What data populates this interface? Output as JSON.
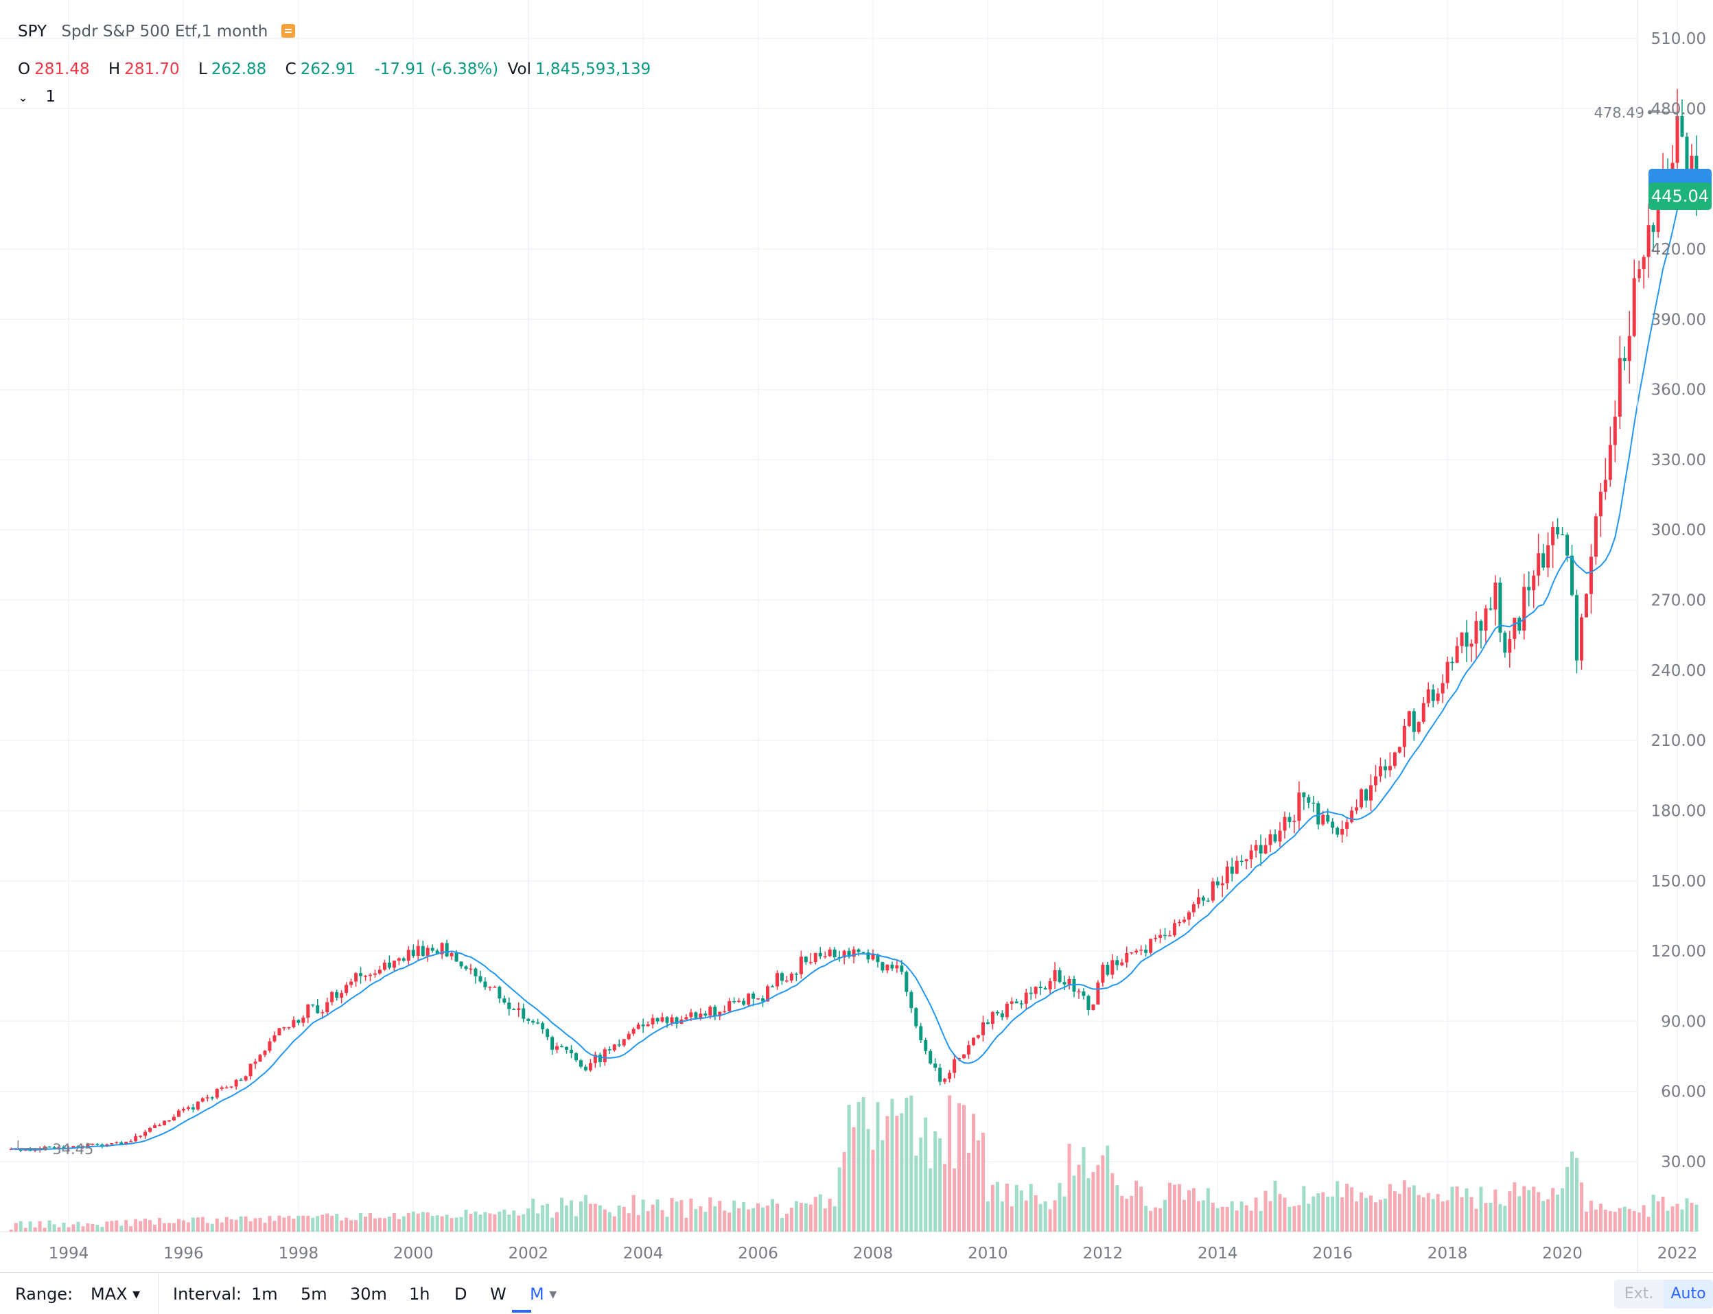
{
  "header": {
    "symbol": "SPY",
    "description": "Spdr S&P 500 Etf,1 month",
    "badge_icon": "flag-icon"
  },
  "ohlc": {
    "o_label": "O",
    "o_value": "281.48",
    "h_label": "H",
    "h_value": "281.70",
    "l_label": "L",
    "l_value": "262.88",
    "c_label": "C",
    "c_value": "262.91",
    "change": "-17.91 (-6.38%)",
    "vol_label": "Vol",
    "vol_value": "1,845,593,139"
  },
  "indicator_toggle": {
    "icon": "chevron-down-icon",
    "label": "1"
  },
  "price_scale": {
    "labels": [
      "510.00",
      "480.00",
      "420.00",
      "390.00",
      "360.00",
      "330.00",
      "300.00",
      "270.00",
      "240.00",
      "210.00",
      "180.00",
      "150.00",
      "120.00",
      "90.00",
      "60.00",
      "30.00"
    ],
    "current_price": "445.04"
  },
  "time_scale": {
    "labels": [
      "1994",
      "1996",
      "1998",
      "2000",
      "2002",
      "2004",
      "2006",
      "2008",
      "2010",
      "2012",
      "2014",
      "2016",
      "2018",
      "2020",
      "2022"
    ]
  },
  "markers": {
    "high_label": "478.49",
    "low_label": "34.45"
  },
  "toolbar": {
    "range_label": "Range:",
    "range_value": "MAX",
    "interval_label": "Interval:",
    "intervals": [
      "1m",
      "5m",
      "30m",
      "1h",
      "D",
      "W",
      "M"
    ],
    "active_interval": "M",
    "ext_label": "Ext.",
    "auto_label": "Auto"
  },
  "colors": {
    "up": "#f23645",
    "down": "#089981",
    "ma": "#2196f3",
    "grid": "#f0f3fa",
    "accent": "#2962ff"
  },
  "chart_data": {
    "type": "candlestick",
    "title": "SPY Spdr S&P 500 Etf, 1 month",
    "ylim": [
      0,
      525
    ],
    "xlim": [
      1993.0,
      2022.35
    ],
    "legend": "top-left",
    "grid": true,
    "anchors": [
      {
        "t": 1993.0,
        "p": 35
      },
      {
        "t": 1995.0,
        "p": 38
      },
      {
        "t": 1996.0,
        "p": 52
      },
      {
        "t": 1997.0,
        "p": 65
      },
      {
        "t": 1997.6,
        "p": 85
      },
      {
        "t": 1998.6,
        "p": 100
      },
      {
        "t": 1999.0,
        "p": 110
      },
      {
        "t": 2000.5,
        "p": 122
      },
      {
        "t": 2001.0,
        "p": 110
      },
      {
        "t": 2001.8,
        "p": 95
      },
      {
        "t": 2002.5,
        "p": 78
      },
      {
        "t": 2003.0,
        "p": 70
      },
      {
        "t": 2004.0,
        "p": 90
      },
      {
        "t": 2005.0,
        "p": 92
      },
      {
        "t": 2006.0,
        "p": 100
      },
      {
        "t": 2007.0,
        "p": 120
      },
      {
        "t": 2007.8,
        "p": 120
      },
      {
        "t": 2008.5,
        "p": 110
      },
      {
        "t": 2009.0,
        "p": 70
      },
      {
        "t": 2009.2,
        "p": 65
      },
      {
        "t": 2010.0,
        "p": 90
      },
      {
        "t": 2011.3,
        "p": 110
      },
      {
        "t": 2011.8,
        "p": 95
      },
      {
        "t": 2012.0,
        "p": 112
      },
      {
        "t": 2013.0,
        "p": 125
      },
      {
        "t": 2014.0,
        "p": 150
      },
      {
        "t": 2015.0,
        "p": 170
      },
      {
        "t": 2015.5,
        "p": 185
      },
      {
        "t": 2016.0,
        "p": 170
      },
      {
        "t": 2016.5,
        "p": 185
      },
      {
        "t": 2017.0,
        "p": 205
      },
      {
        "t": 2018.0,
        "p": 240
      },
      {
        "t": 2018.8,
        "p": 275
      },
      {
        "t": 2019.0,
        "p": 250
      },
      {
        "t": 2020.0,
        "p": 300
      },
      {
        "t": 2020.25,
        "p": 250
      },
      {
        "t": 2021.0,
        "p": 370
      },
      {
        "t": 2021.9,
        "p": 465
      },
      {
        "t": 2022.0,
        "p": 470
      },
      {
        "t": 2022.35,
        "p": 445
      }
    ],
    "high": {
      "t": 2022.0,
      "p": 478.49
    },
    "low": {
      "t": 1993.0,
      "p": 34.45
    },
    "last_close": 445.04,
    "volume_series": "monthly volume bars, peaks in 2008-2009 and 2011, spike in early 2020"
  }
}
